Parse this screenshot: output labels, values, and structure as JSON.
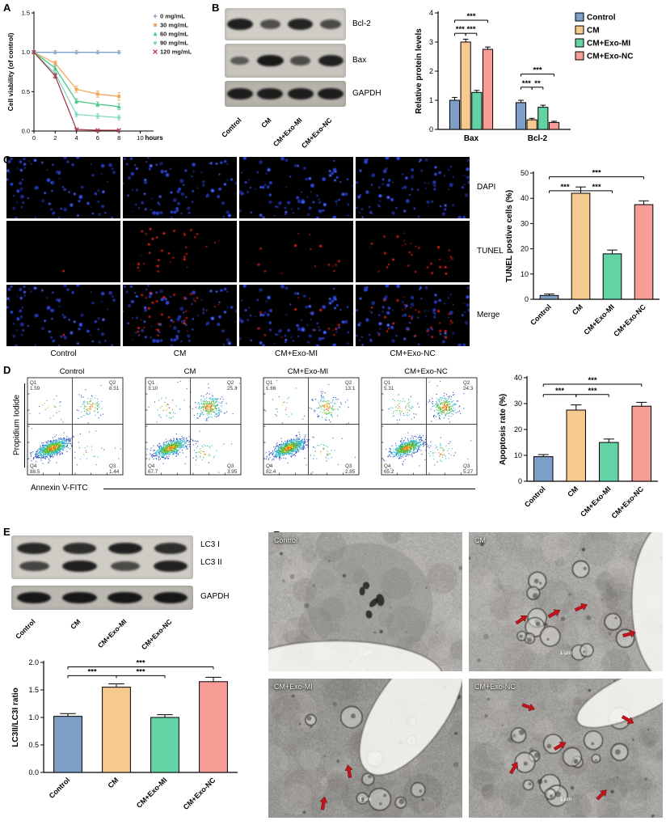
{
  "panel_labels": [
    "A",
    "B",
    "C",
    "D",
    "E",
    "F"
  ],
  "group_labels": [
    "Control",
    "CM",
    "CM+Exo-MI",
    "CM+Exo-NC"
  ],
  "group_colors": [
    "#7d9ec6",
    "#f6c98f",
    "#63d3a6",
    "#f79d96"
  ],
  "panelB_blot": {
    "band_labels": [
      "Bcl-2",
      "Bax",
      "GAPDH"
    ],
    "lanes": [
      "Control",
      "CM",
      "CM+Exo-MI",
      "CM+Exo-NC"
    ],
    "band_intensities": [
      [
        0.92,
        0.5,
        0.88,
        0.55
      ],
      [
        0.4,
        0.97,
        0.5,
        0.9
      ],
      [
        0.92,
        0.92,
        0.92,
        0.92
      ]
    ]
  },
  "panelC": {
    "row_labels": [
      "DAPI",
      "TUNEL",
      "Merge"
    ],
    "col_labels": [
      "Control",
      "CM",
      "CM+Exo-MI",
      "CM+Exo-NC"
    ]
  },
  "panelD": {
    "plot_titles": [
      "Control",
      "CM",
      "CM+Exo-MI",
      "CM+Exo-NC"
    ],
    "xlabel": "Annexin V-FITC",
    "ylabel": "Propidium Iodide",
    "quadrant_names": [
      "Q1",
      "Q2",
      "Q3",
      "Q4"
    ],
    "quadrants": [
      {
        "Q1": "1.59",
        "Q2": "8.51",
        "Q3": "1.44",
        "Q4": "88.5"
      },
      {
        "Q1": "3.10",
        "Q2": "25.3",
        "Q3": "3.95",
        "Q4": "67.7"
      },
      {
        "Q1": "1.66",
        "Q2": "13.1",
        "Q3": "2.85",
        "Q4": "82.4"
      },
      {
        "Q1": "5.31",
        "Q2": "24.3",
        "Q3": "5.27",
        "Q4": "65.2"
      }
    ]
  },
  "panelE_blot": {
    "band_labels": [
      "LC3 I",
      "LC3 II",
      "GAPDH"
    ],
    "lanes": [
      "Control",
      "CM",
      "CM+Exo-MI",
      "CM+Exo-NC"
    ],
    "band_intensities": [
      [
        0.85,
        0.8,
        0.9,
        0.8
      ],
      [
        0.6,
        0.92,
        0.55,
        0.9
      ],
      [
        0.9,
        0.9,
        0.9,
        0.9
      ]
    ]
  },
  "panelF": {
    "image_labels": [
      "Control",
      "CM",
      "CM+Exo-MI",
      "CM+Exo-NC"
    ],
    "scale_label": "1 µm",
    "arrow_color": "#c3161c",
    "arrow_counts": [
      0,
      4,
      2,
      5
    ]
  },
  "chart_data": [
    {
      "id": "A",
      "type": "line",
      "title": "",
      "xlabel": "hours",
      "ylabel": "Cell viability (of control)",
      "x": [
        0,
        2,
        4,
        6,
        8
      ],
      "xticks": [
        0,
        2,
        4,
        6,
        8,
        10
      ],
      "xlim": [
        0,
        10.8
      ],
      "ylim": [
        0,
        1.5
      ],
      "yticks": [
        0,
        0.5,
        1,
        1.5
      ],
      "legend_position": "right",
      "series": [
        {
          "name": "0 mg/mL",
          "color": "#7d9ec6",
          "marker": "plus",
          "values": [
            1.0,
            1.0,
            1.0,
            1.0,
            1.0
          ],
          "err": [
            0.02,
            0.02,
            0.02,
            0.02,
            0.02
          ]
        },
        {
          "name": "30 mg/mL",
          "color": "#f0a95c",
          "marker": "square",
          "values": [
            1.0,
            0.86,
            0.53,
            0.47,
            0.44
          ],
          "err": [
            0.02,
            0.03,
            0.04,
            0.04,
            0.05
          ]
        },
        {
          "name": "60 mg/mL",
          "color": "#49c98f",
          "marker": "triangle",
          "values": [
            1.0,
            0.8,
            0.38,
            0.34,
            0.31
          ],
          "err": [
            0.02,
            0.03,
            0.03,
            0.03,
            0.04
          ]
        },
        {
          "name": "90 mg/mL",
          "color": "#86d8c6",
          "marker": "diamond",
          "values": [
            1.0,
            0.73,
            0.21,
            0.19,
            0.17
          ],
          "err": [
            0.02,
            0.03,
            0.03,
            0.03,
            0.03
          ]
        },
        {
          "name": "120 mg/mL",
          "color": "#a63a4a",
          "marker": "cross",
          "values": [
            1.0,
            0.7,
            0.02,
            0.01,
            0.01
          ],
          "err": [
            0.02,
            0.03,
            0.01,
            0.01,
            0.01
          ]
        }
      ]
    },
    {
      "id": "B",
      "type": "bar",
      "ylabel": "Relative protein levels",
      "ylim": [
        0,
        4
      ],
      "yticks": [
        0,
        1,
        2,
        3,
        4
      ],
      "categories": [
        "Bax",
        "Bcl-2"
      ],
      "legend_position": "right",
      "series": [
        {
          "name": "Control",
          "color": "#7d9ec6",
          "values": [
            1.0,
            0.92
          ],
          "err": [
            0.1,
            0.08
          ]
        },
        {
          "name": "CM",
          "color": "#f6c98f",
          "values": [
            3.0,
            0.33
          ],
          "err": [
            0.1,
            0.05
          ]
        },
        {
          "name": "CM+Exo-MI",
          "color": "#63d3a6",
          "values": [
            1.27,
            0.76
          ],
          "err": [
            0.07,
            0.07
          ]
        },
        {
          "name": "CM+Exo-NC",
          "color": "#f79d96",
          "values": [
            2.75,
            0.24
          ],
          "err": [
            0.08,
            0.04
          ]
        }
      ],
      "significance": [
        {
          "x1": 0,
          "x2": 3,
          "y": 3.75,
          "label": "***"
        },
        {
          "x1": 0,
          "x2": 1,
          "y": 3.3,
          "label": "***"
        },
        {
          "x1": 1,
          "x2": 2,
          "y": 3.3,
          "label": "***"
        },
        {
          "x1": 4,
          "x2": 7,
          "y": 1.9,
          "label": "***"
        },
        {
          "x1": 4,
          "x2": 5,
          "y": 1.45,
          "label": "***"
        },
        {
          "x1": 5,
          "x2": 6,
          "y": 1.45,
          "label": "**"
        }
      ]
    },
    {
      "id": "C",
      "type": "bar",
      "ylabel": "TUNEL postive cells (%)",
      "ylim": [
        0,
        50
      ],
      "yticks": [
        0,
        10,
        20,
        30,
        40,
        50
      ],
      "categories": [
        "Control",
        "CM",
        "CM+Exo-MI",
        "CM+Exo-NC"
      ],
      "values": [
        1.5,
        42,
        18,
        37.5
      ],
      "err": [
        0.6,
        2.5,
        1.5,
        1.5
      ],
      "significance": [
        {
          "x1": 0,
          "x2": 3,
          "y": 48.5,
          "label": "***"
        },
        {
          "x1": 0,
          "x2": 1,
          "y": 43,
          "label": "***"
        },
        {
          "x1": 1,
          "x2": 2,
          "y": 43,
          "label": "***"
        }
      ]
    },
    {
      "id": "D",
      "type": "bar",
      "ylabel": "Apoptosis rate (%)",
      "ylim": [
        0,
        40
      ],
      "yticks": [
        0,
        10,
        20,
        30,
        40
      ],
      "categories": [
        "Control",
        "CM",
        "CM+Exo-MI",
        "CM+Exo-NC"
      ],
      "values": [
        9.5,
        27.5,
        15,
        29
      ],
      "err": [
        0.8,
        2,
        1.3,
        1.5
      ],
      "significance": [
        {
          "x1": 0,
          "x2": 3,
          "y": 37.5,
          "label": "***"
        },
        {
          "x1": 0,
          "x2": 1,
          "y": 33.5,
          "label": "***"
        },
        {
          "x1": 1,
          "x2": 2,
          "y": 33.5,
          "label": "***"
        }
      ]
    },
    {
      "id": "E",
      "type": "bar",
      "ylabel": "LC3II/LC3I ratio",
      "ylim": [
        0,
        2
      ],
      "yticks": [
        0,
        0.5,
        1,
        1.5,
        2
      ],
      "ydecimals": 1,
      "categories": [
        "Control",
        "CM",
        "CM+Exo-MI",
        "CM+Exo-NC"
      ],
      "values": [
        1.02,
        1.55,
        1.0,
        1.65
      ],
      "err": [
        0.05,
        0.06,
        0.05,
        0.08
      ],
      "significance": [
        {
          "x1": 0,
          "x2": 3,
          "y": 1.92,
          "label": "***"
        },
        {
          "x1": 0,
          "x2": 1,
          "y": 1.76,
          "label": "***"
        },
        {
          "x1": 1,
          "x2": 2,
          "y": 1.76,
          "label": "***"
        }
      ]
    }
  ]
}
